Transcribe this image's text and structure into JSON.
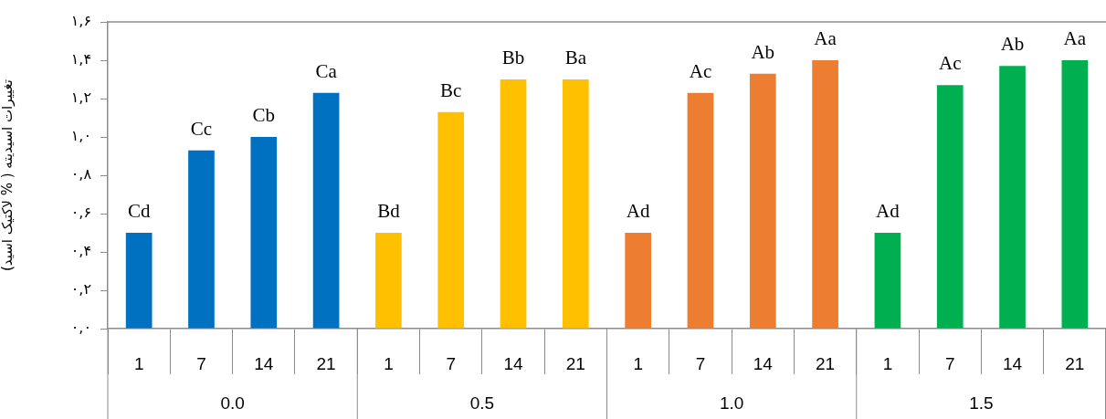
{
  "chart_data": {
    "type": "bar",
    "ylabel": "تغییرات اسیدیته ( % لاکتیک اسید)",
    "categories": [
      "1",
      "7",
      "14",
      "21",
      "1",
      "7",
      "14",
      "21",
      "1",
      "7",
      "14",
      "21",
      "1",
      "7",
      "14",
      "21"
    ],
    "values": [
      0.5,
      0.93,
      1.0,
      1.23,
      0.5,
      1.13,
      1.3,
      1.3,
      0.5,
      1.23,
      1.33,
      1.4,
      0.5,
      1.27,
      1.37,
      1.4
    ],
    "colors": [
      "#0070c0",
      "#0070c0",
      "#0070c0",
      "#0070c0",
      "#ffc000",
      "#ffc000",
      "#ffc000",
      "#ffc000",
      "#ed7d31",
      "#ed7d31",
      "#ed7d31",
      "#ed7d31",
      "#00b050",
      "#00b050",
      "#00b050",
      "#00b050"
    ],
    "value_labels": [
      "Cd",
      "Cc",
      "Cb",
      "Ca",
      "Bd",
      "Bc",
      "Bb",
      "Ba",
      "Ad",
      "Ac",
      "Ab",
      "Aa",
      "Ad",
      "Ac",
      "Ab",
      "Aa"
    ],
    "annotations": [
      "0.0",
      "0.5",
      "1.0",
      "1.5"
    ],
    "ylim": [
      0,
      1.6
    ],
    "yticks": [
      {
        "value": 0,
        "label": "۰,۰"
      },
      {
        "value": 0.2,
        "label": "۰,۲"
      },
      {
        "value": 0.4,
        "label": "۰,۴"
      },
      {
        "value": 0.6,
        "label": "۰,۶"
      },
      {
        "value": 0.8,
        "label": "۰,۸"
      },
      {
        "value": 1.0,
        "label": "۱,۰"
      },
      {
        "value": 1.2,
        "label": "۱,۲"
      },
      {
        "value": 1.4,
        "label": "۱,۴"
      },
      {
        "value": 1.6,
        "label": "۱,۶"
      }
    ],
    "grid": false,
    "legend": false
  }
}
